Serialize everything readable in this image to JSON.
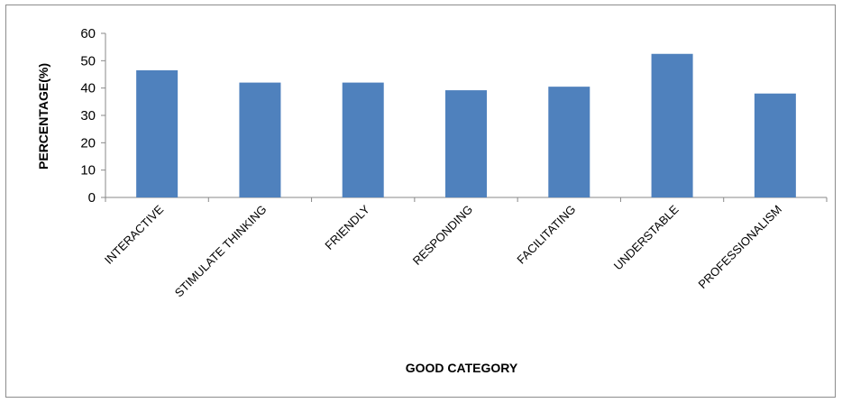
{
  "chart_data": {
    "type": "bar",
    "title": "",
    "xlabel": "GOOD CATEGORY",
    "ylabel": "PERCENTAGE(%)",
    "categories": [
      "INTERACTIVE",
      "STIMULATE THINKING",
      "FRIENDLY",
      "RESPONDING",
      "FACILITATING",
      "UNDERSTABLE",
      "PROFESSIONALISM"
    ],
    "values": [
      46.5,
      42,
      42,
      39.2,
      40.5,
      52.5,
      38
    ],
    "ylim": [
      0,
      60
    ],
    "yticks": [
      0,
      10,
      20,
      30,
      40,
      50,
      60
    ],
    "grid": false,
    "legend": "none",
    "bar_color": "#4f81bd"
  }
}
